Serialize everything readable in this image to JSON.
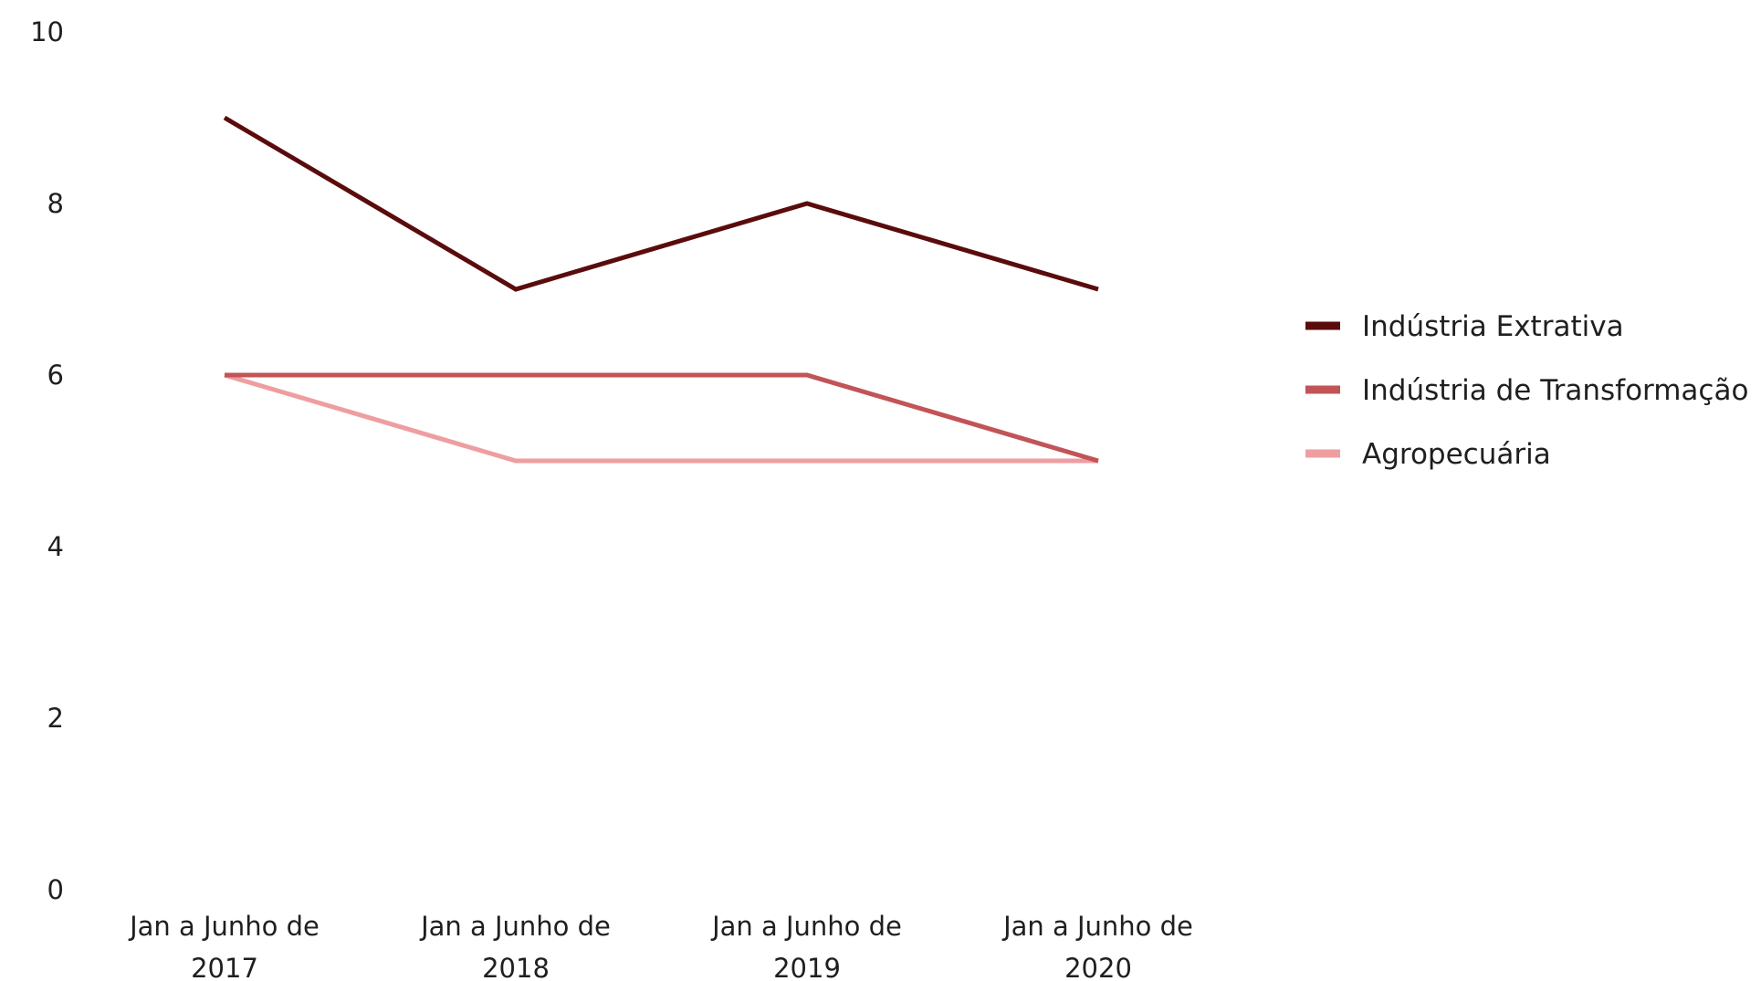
{
  "chart_data": {
    "type": "line",
    "categories": [
      [
        "Jan a Junho de",
        "2017"
      ],
      [
        "Jan a Junho de",
        "2018"
      ],
      [
        "Jan a Junho de",
        "2019"
      ],
      [
        "Jan a Junho de",
        "2020"
      ]
    ],
    "series": [
      {
        "name": "Indústria Extrativa",
        "values": [
          9,
          7,
          8,
          7
        ],
        "color": "#5a0c0c"
      },
      {
        "name": "Indústria de Transformação",
        "values": [
          6,
          6,
          6,
          5
        ],
        "color": "#c25457"
      },
      {
        "name": "Agropecuária",
        "values": [
          6,
          5,
          5,
          5
        ],
        "color": "#ee9ea0"
      }
    ],
    "ylim": [
      0,
      10
    ],
    "yticks": [
      0,
      2,
      4,
      6,
      8,
      10
    ],
    "grid": false,
    "legend_position": "right",
    "title": "",
    "xlabel": "",
    "ylabel": ""
  }
}
